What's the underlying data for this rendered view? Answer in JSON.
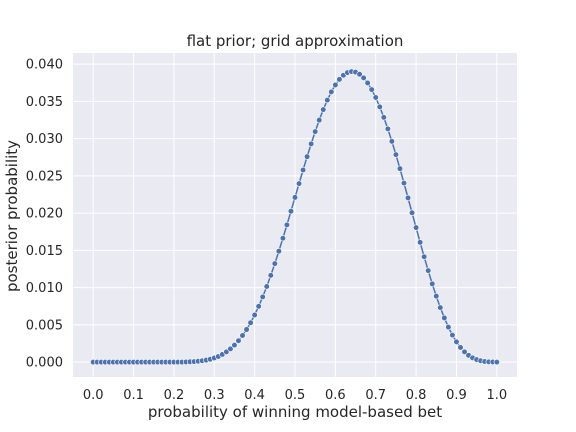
{
  "chart_data": {
    "type": "line",
    "title": "flat prior; grid approximation",
    "xlabel": "probability of winning model-based bet",
    "ylabel": "posterior probability",
    "xlim": [
      -0.05,
      1.05
    ],
    "ylim": [
      -0.002,
      0.0415
    ],
    "x_ticks": [
      0.0,
      0.1,
      0.2,
      0.3,
      0.4,
      0.5,
      0.6,
      0.7,
      0.8,
      0.9,
      1.0
    ],
    "x_tick_labels": [
      "0.0",
      "0.1",
      "0.2",
      "0.3",
      "0.4",
      "0.5",
      "0.6",
      "0.7",
      "0.8",
      "0.9",
      "1.0"
    ],
    "y_ticks": [
      0.0,
      0.005,
      0.01,
      0.015,
      0.02,
      0.025,
      0.03,
      0.035,
      0.04
    ],
    "y_tick_labels": [
      "0.000",
      "0.005",
      "0.010",
      "0.015",
      "0.020",
      "0.025",
      "0.030",
      "0.035",
      "0.040"
    ],
    "grid": true,
    "marker": "circle",
    "colors": {
      "series": "#4c72b0",
      "background": "#eaeaf2",
      "grid": "#ffffff"
    },
    "series": [
      {
        "x": [
          0.0,
          0.01,
          0.02,
          0.03,
          0.04,
          0.05,
          0.06,
          0.07,
          0.08,
          0.09,
          0.1,
          0.11,
          0.12,
          0.13,
          0.14,
          0.15,
          0.16,
          0.17,
          0.18,
          0.19,
          0.2,
          0.21,
          0.22,
          0.23,
          0.24,
          0.25,
          0.26,
          0.27,
          0.28,
          0.29,
          0.3,
          0.31,
          0.32,
          0.33,
          0.34,
          0.35,
          0.36,
          0.37,
          0.38,
          0.39,
          0.4,
          0.41,
          0.42,
          0.43,
          0.44,
          0.45,
          0.46,
          0.47,
          0.48,
          0.49,
          0.5,
          0.51,
          0.52,
          0.53,
          0.54,
          0.55,
          0.56,
          0.57,
          0.58,
          0.59,
          0.6,
          0.61,
          0.62,
          0.63,
          0.64,
          0.65,
          0.66,
          0.67,
          0.68,
          0.69,
          0.7,
          0.71,
          0.72,
          0.73,
          0.74,
          0.75,
          0.76,
          0.77,
          0.78,
          0.79,
          0.8,
          0.81,
          0.82,
          0.83,
          0.84,
          0.85,
          0.86,
          0.87,
          0.88,
          0.89,
          0.9,
          0.91,
          0.92,
          0.93,
          0.94,
          0.95,
          0.96,
          0.97,
          0.98,
          0.99,
          1.0
        ],
        "y": [
          0.0,
          0.0,
          0.0,
          0.0,
          0.0,
          0.0,
          0.0,
          0.0,
          0.0,
          0.0,
          0.0,
          0.0,
          0.0,
          0.0,
          0.0,
          0.0,
          0.0,
          0.0,
          0.0,
          0.0,
          0.0,
          0.0,
          0.0,
          2e-05,
          4e-05,
          7e-05,
          0.00012,
          0.00018,
          0.00027,
          0.00039,
          0.00055,
          0.00076,
          0.00103,
          0.00137,
          0.00178,
          0.00228,
          0.00287,
          0.00357,
          0.00437,
          0.00529,
          0.00633,
          0.00749,
          0.00876,
          0.01015,
          0.01164,
          0.01322,
          0.01489,
          0.01663,
          0.01843,
          0.02026,
          0.02211,
          0.02396,
          0.02579,
          0.02758,
          0.0293,
          0.03094,
          0.03248,
          0.0339,
          0.03517,
          0.03628,
          0.03721,
          0.03796,
          0.03851,
          0.03886,
          0.039,
          0.03893,
          0.03865,
          0.03816,
          0.03747,
          0.03659,
          0.03552,
          0.03427,
          0.03286,
          0.03131,
          0.02963,
          0.02785,
          0.02597,
          0.02403,
          0.02205,
          0.02005,
          0.01805,
          0.01607,
          0.01414,
          0.01228,
          0.01051,
          0.00885,
          0.00732,
          0.00593,
          0.0047,
          0.00362,
          0.00271,
          0.00196,
          0.00137,
          0.00091,
          0.00057,
          0.00034,
          0.00018,
          8e-05,
          3e-05,
          1e-05,
          0.0
        ]
      }
    ]
  }
}
